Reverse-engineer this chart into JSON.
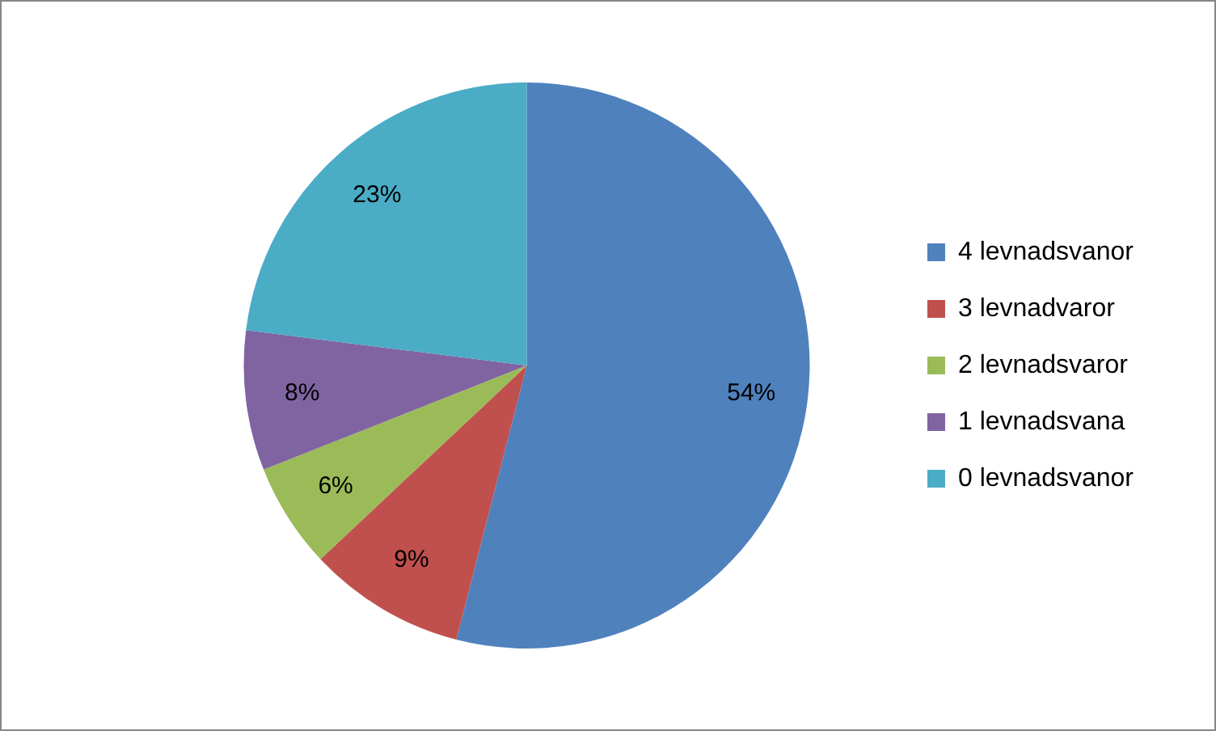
{
  "chart_data": {
    "type": "pie",
    "categories": [
      "4 levnadsvanor",
      "3 levnadvaror",
      "2 levnadsvaror",
      "1 levnadsvana",
      "0 levnadsvanor"
    ],
    "values": [
      54,
      9,
      6,
      8,
      23
    ],
    "colors": [
      "#4f81bd",
      "#c0504d",
      "#9bbb59",
      "#8064a2",
      "#4bacc6"
    ],
    "value_labels": [
      "54%",
      "9%",
      "6%",
      "8%",
      "23%"
    ],
    "legend": "right"
  }
}
